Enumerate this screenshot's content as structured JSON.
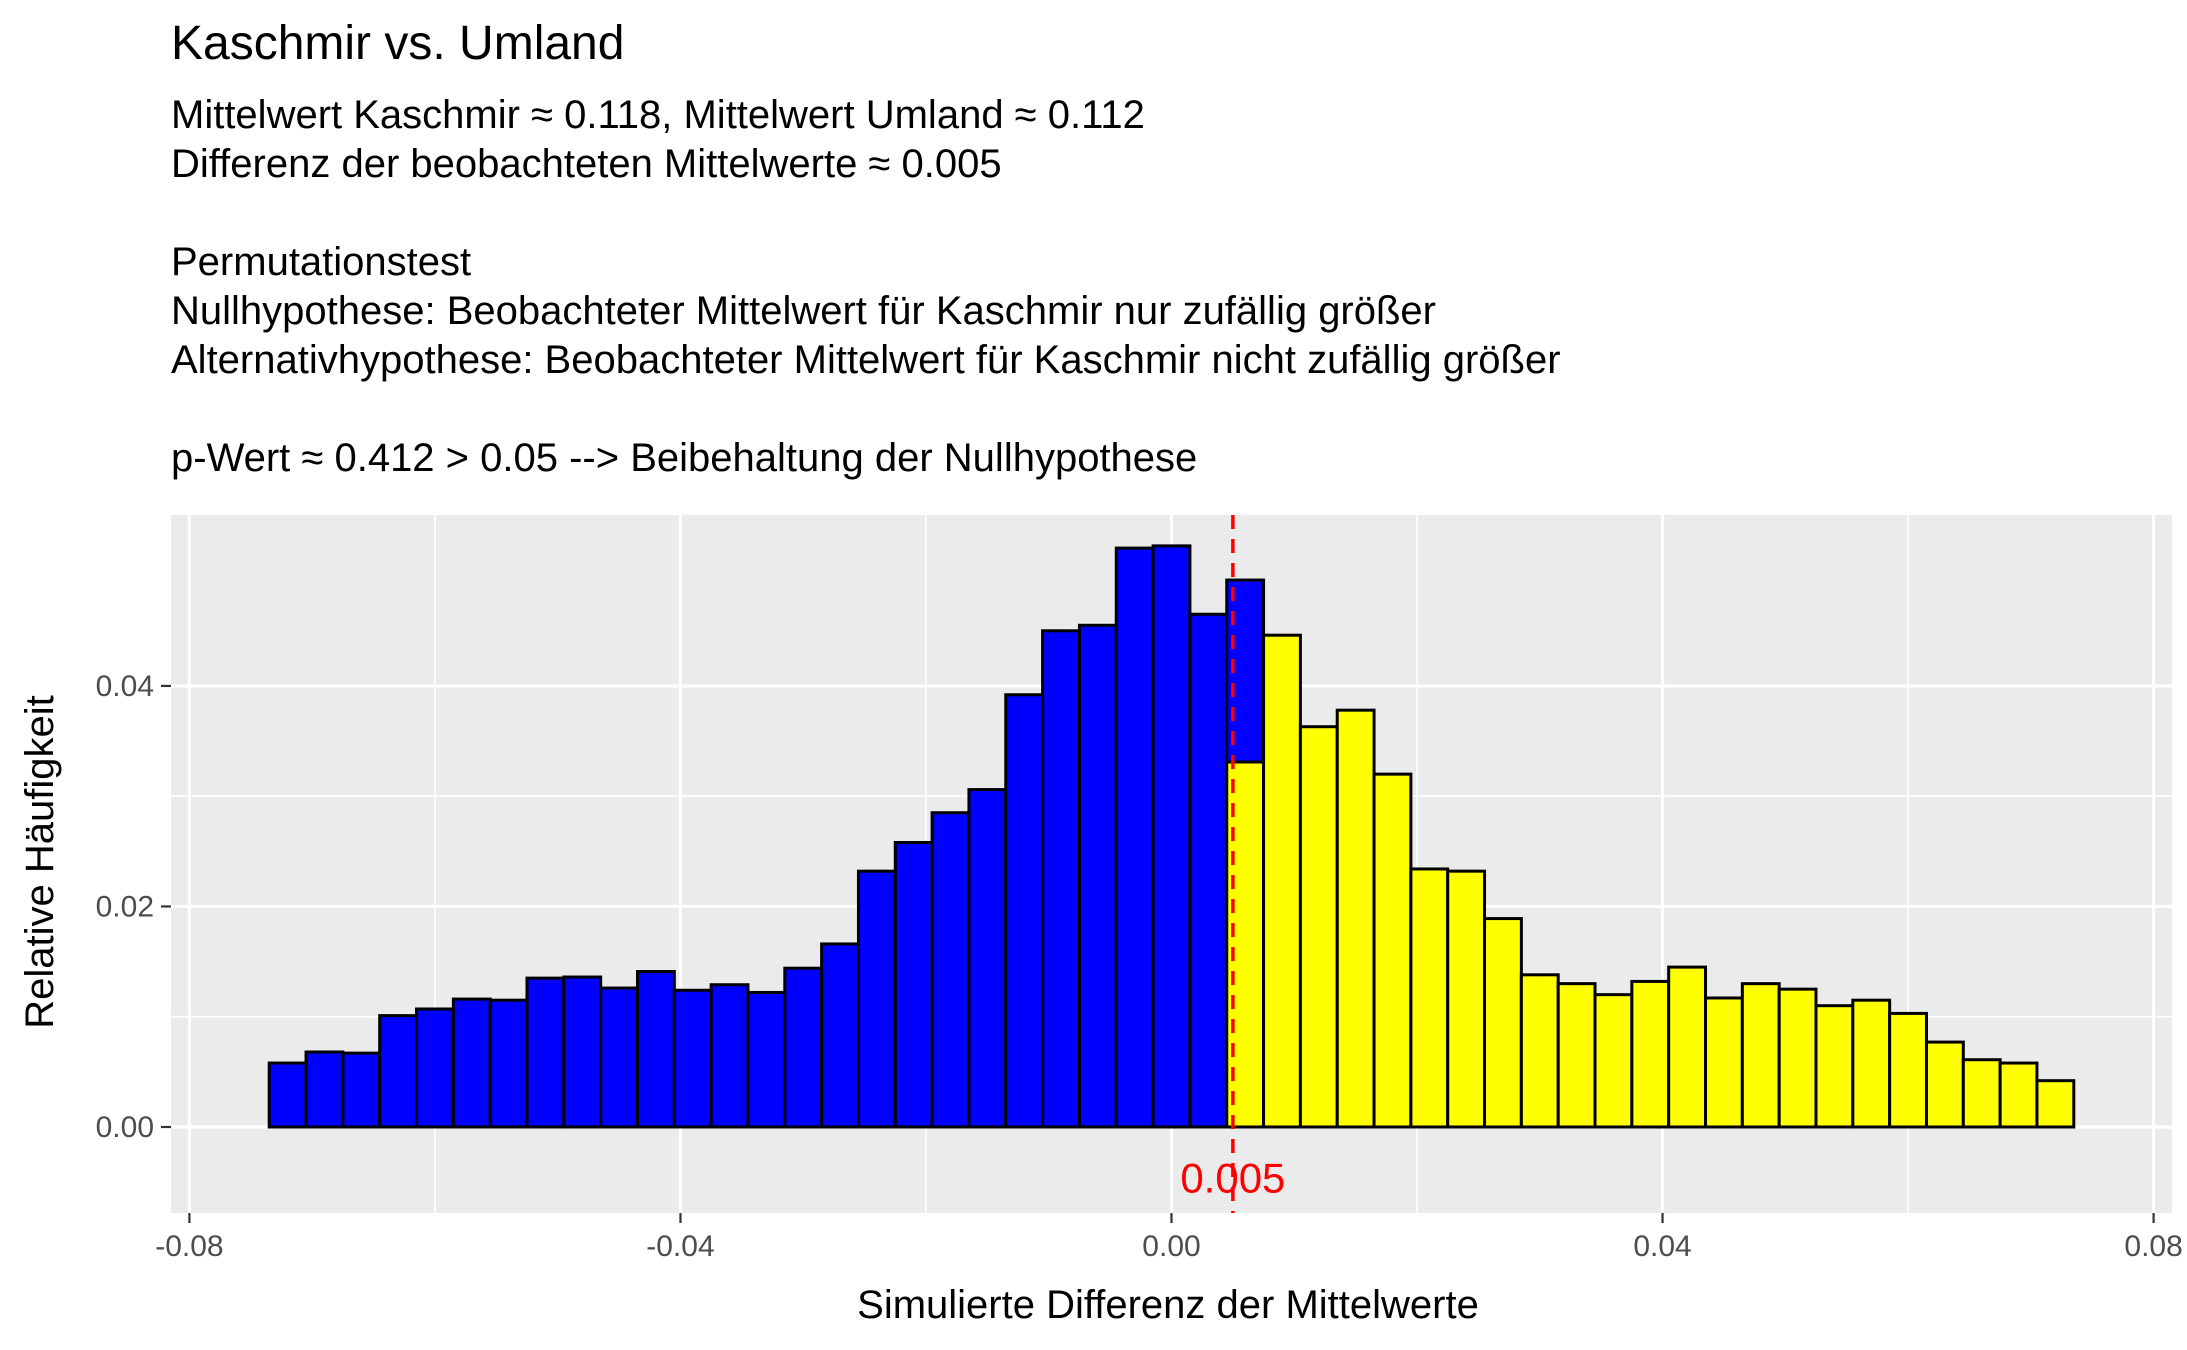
{
  "chart_data": {
    "type": "bar",
    "title": "Kaschmir vs. Umland",
    "subtitle_lines": [
      "Mittelwert Kaschmir ≈ 0.118, Mittelwert Umland ≈ 0.112",
      "Differenz der beobachteten Mittelwerte ≈ 0.005",
      "",
      "Permutationstest",
      "Nullhypothese: Beobachteter Mittelwert für Kaschmir nur zufällig größer",
      "Alternativhypothese: Beobachteter Mittelwert für Kaschmir nicht zufällig größer",
      "",
      "p-Wert ≈ 0.412 > 0.05 --> Beibehaltung der Nullhypothese"
    ],
    "xlabel": "Simulierte Differenz der Mittelwerte",
    "ylabel": "Relative Häufigkeit",
    "xlim": [
      -0.0815,
      0.0815
    ],
    "ylim": [
      -0.0078,
      0.0555
    ],
    "x_ticks": [
      -0.08,
      -0.04,
      0.0,
      0.04,
      0.08
    ],
    "x_tick_labels": [
      "-0.08",
      "-0.04",
      "0.00",
      "0.04",
      "0.08"
    ],
    "y_ticks": [
      0.0,
      0.02,
      0.04
    ],
    "y_tick_labels": [
      "0.00",
      "0.02",
      "0.04"
    ],
    "grid": true,
    "legend": "none",
    "bin_start": -0.0735,
    "bin_width": 0.003,
    "values": [
      0.0058,
      0.0068,
      0.0067,
      0.0101,
      0.0107,
      0.0116,
      0.0115,
      0.0135,
      0.0136,
      0.0126,
      0.0141,
      0.0124,
      0.0129,
      0.0122,
      0.0144,
      0.0166,
      0.0232,
      0.0258,
      0.0285,
      0.0306,
      0.0392,
      0.045,
      0.0455,
      0.0525,
      0.0527,
      0.0465,
      0.0496,
      0.0446,
      0.0363,
      0.0378,
      0.032,
      0.0234,
      0.0232,
      0.0189,
      0.0138,
      0.013,
      0.012,
      0.0132,
      0.0145,
      0.0117,
      0.013,
      0.0125,
      0.011,
      0.0115,
      0.0103,
      0.0077,
      0.0061,
      0.0058,
      0.0042
    ],
    "split_bin_index": 26,
    "split_bin_lower_value": 0.0331,
    "colors": {
      "below_observed": "#0000ff",
      "above_observed": "#ffff00",
      "bar_outline": "#000000",
      "observed_line": "#ff0000",
      "panel_background": "#ebebeb",
      "grid": "#ffffff"
    },
    "observed_difference": 0.005,
    "observed_label": "0.005"
  }
}
